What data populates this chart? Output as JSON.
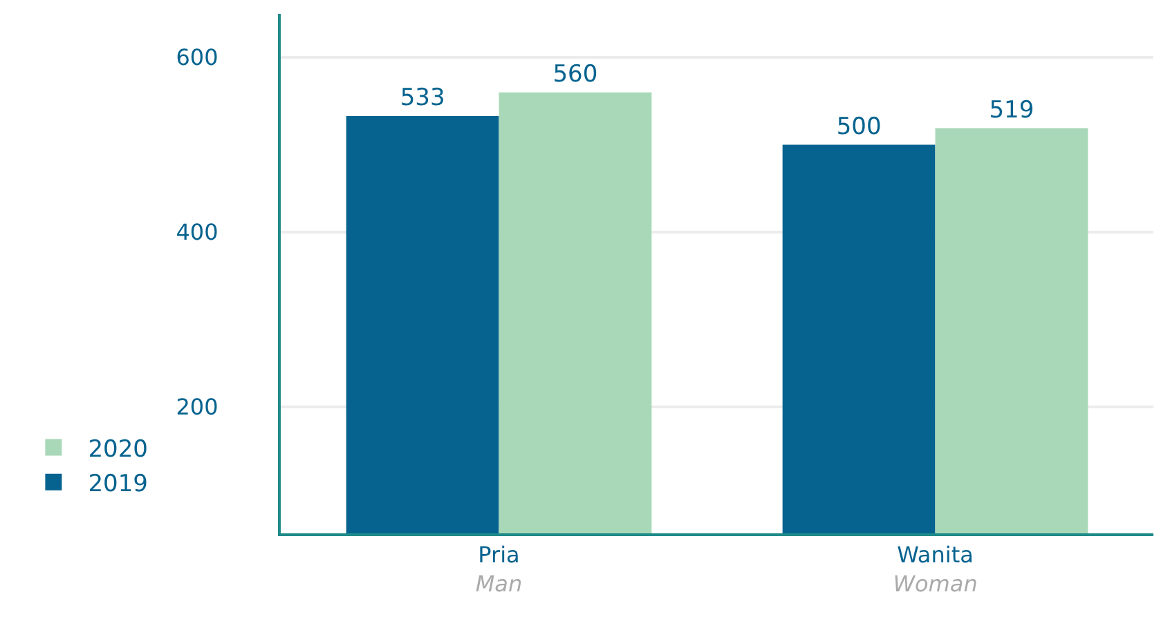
{
  "chart_data": {
    "type": "bar",
    "categories": [
      "Pria\nMan",
      "Wanita\nWoman"
    ],
    "series": [
      {
        "name": "2019",
        "color": "#06638f",
        "values": [
          533,
          500
        ]
      },
      {
        "name": "2020",
        "color": "#a9d8b8",
        "values": [
          560,
          519
        ]
      }
    ],
    "ylim": [
      55,
      650
    ],
    "yticks": [
      200,
      400,
      600
    ],
    "grid": "y",
    "legend": "bottom left",
    "data_labels": true
  }
}
